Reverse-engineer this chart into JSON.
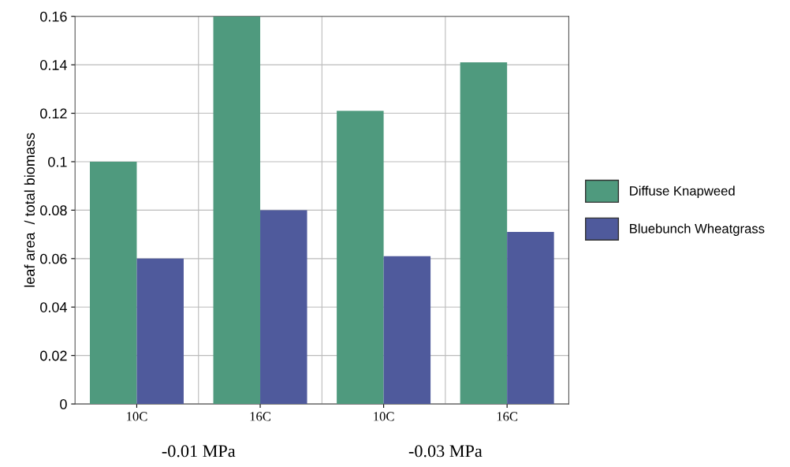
{
  "chart_data": {
    "type": "bar",
    "ylabel": "leaf area  / total biomass",
    "categories": [
      "10C",
      "16C",
      "10C",
      "16C"
    ],
    "series": [
      {
        "name": "Diffuse Knapweed",
        "color": "#4f9a7e",
        "values": [
          0.1,
          0.16,
          0.121,
          0.141
        ]
      },
      {
        "name": "Bluebunch Wheatgrass",
        "color": "#4f5a9c",
        "values": [
          0.06,
          0.08,
          0.061,
          0.071
        ]
      }
    ],
    "ylim": [
      0,
      0.16
    ],
    "yticks": [
      0,
      0.02,
      0.04,
      0.06,
      0.08,
      {
        "value": 0.1,
        "label": "0.1"
      },
      0.12,
      0.14,
      0.16
    ],
    "annotations": [
      "-0.01 MPa",
      "-0.03 MPa"
    ],
    "grid": true,
    "legend": "right"
  }
}
